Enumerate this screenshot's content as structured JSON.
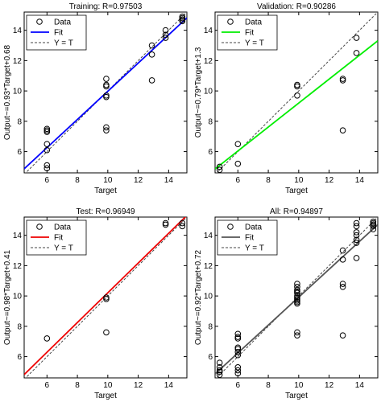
{
  "chart_data": [
    {
      "type": "scatter",
      "title": "Training: R=0.97503",
      "xlabel": "Target",
      "ylabel": "Output~=0.93*Target+0.68",
      "xlim": [
        4.5,
        15.2
      ],
      "ylim": [
        4.6,
        15.2
      ],
      "xticks": [
        6,
        8,
        10,
        12,
        14
      ],
      "yticks": [
        6,
        8,
        10,
        12,
        14
      ],
      "grid": false,
      "legend_position": "top-left",
      "legend": [
        "Data",
        "Fit",
        "Y = T"
      ],
      "fit_color": "#0000ff",
      "fit": {
        "slope": 0.93,
        "intercept": 0.68
      },
      "series": [
        {
          "name": "Data",
          "points": [
            [
              6,
              4.9
            ],
            [
              6,
              5.1
            ],
            [
              6,
              6.1
            ],
            [
              6,
              6.5
            ],
            [
              6,
              7.3
            ],
            [
              6,
              7.4
            ],
            [
              6,
              7.5
            ],
            [
              9.9,
              7.4
            ],
            [
              9.9,
              7.6
            ],
            [
              9.9,
              9.6
            ],
            [
              9.9,
              9.7
            ],
            [
              9.9,
              10.3
            ],
            [
              9.9,
              10.4
            ],
            [
              9.9,
              10.8
            ],
            [
              12.9,
              10.7
            ],
            [
              12.9,
              12.4
            ],
            [
              12.9,
              13.0
            ],
            [
              13.8,
              13.5
            ],
            [
              13.8,
              13.7
            ],
            [
              13.8,
              14.0
            ],
            [
              14.9,
              14.6
            ],
            [
              14.9,
              14.7
            ],
            [
              14.9,
              14.8
            ],
            [
              14.9,
              14.9
            ]
          ]
        }
      ]
    },
    {
      "type": "scatter",
      "title": "Validation: R=0.90286",
      "xlabel": "Target",
      "ylabel": "Output~=0.79*Target+1.3",
      "xlim": [
        4.5,
        15.2
      ],
      "ylim": [
        4.6,
        15.2
      ],
      "xticks": [
        6,
        8,
        10,
        12,
        14
      ],
      "yticks": [
        6,
        8,
        10,
        12,
        14
      ],
      "grid": false,
      "legend_position": "top-left",
      "legend": [
        "Data",
        "Fit",
        "Y = T"
      ],
      "fit_color": "#00ee00",
      "fit": {
        "slope": 0.79,
        "intercept": 1.3
      },
      "series": [
        {
          "name": "Data",
          "points": [
            [
              4.8,
              4.8
            ],
            [
              4.8,
              5.0
            ],
            [
              6,
              5.2
            ],
            [
              6,
              6.5
            ],
            [
              9.9,
              9.7
            ],
            [
              9.9,
              10.3
            ],
            [
              9.9,
              10.4
            ],
            [
              12.9,
              7.4
            ],
            [
              12.9,
              10.7
            ],
            [
              12.9,
              10.8
            ],
            [
              13.8,
              12.5
            ],
            [
              13.8,
              13.5
            ]
          ]
        }
      ]
    },
    {
      "type": "scatter",
      "title": "Test: R=0.96949",
      "xlabel": "Target",
      "ylabel": "Output~=0.98*Target+0.41",
      "xlim": [
        4.5,
        15.2
      ],
      "ylim": [
        4.6,
        15.2
      ],
      "xticks": [
        6,
        8,
        10,
        12,
        14
      ],
      "yticks": [
        6,
        8,
        10,
        12,
        14
      ],
      "grid": false,
      "legend_position": "top-left",
      "legend": [
        "Data",
        "Fit",
        "Y = T"
      ],
      "fit_color": "#ee0000",
      "fit": {
        "slope": 0.98,
        "intercept": 0.41
      },
      "series": [
        {
          "name": "Data",
          "points": [
            [
              6,
              7.2
            ],
            [
              9.9,
              7.6
            ],
            [
              9.9,
              9.8
            ],
            [
              9.9,
              9.9
            ],
            [
              13.8,
              14.7
            ],
            [
              13.8,
              14.8
            ],
            [
              14.9,
              14.6
            ],
            [
              14.9,
              14.8
            ]
          ]
        }
      ]
    },
    {
      "type": "scatter",
      "title": "All: R=0.94897",
      "xlabel": "Target",
      "ylabel": "Output~=0.92*Target+0.72",
      "xlim": [
        4.5,
        15.2
      ],
      "ylim": [
        4.6,
        15.2
      ],
      "xticks": [
        6,
        8,
        10,
        12,
        14
      ],
      "yticks": [
        6,
        8,
        10,
        12,
        14
      ],
      "grid": false,
      "legend_position": "top-left",
      "legend": [
        "Data",
        "Fit",
        "Y = T"
      ],
      "fit_color": "#555555",
      "fit": {
        "slope": 0.92,
        "intercept": 0.72
      },
      "series": [
        {
          "name": "Data",
          "points": [
            [
              4.8,
              4.8
            ],
            [
              4.8,
              5.0
            ],
            [
              4.8,
              5.1
            ],
            [
              4.8,
              5.3
            ],
            [
              4.8,
              5.6
            ],
            [
              6,
              4.9
            ],
            [
              6,
              5.1
            ],
            [
              6,
              5.3
            ],
            [
              6,
              6.1
            ],
            [
              6,
              6.3
            ],
            [
              6,
              6.5
            ],
            [
              6,
              6.6
            ],
            [
              6,
              7.2
            ],
            [
              6,
              7.3
            ],
            [
              6,
              7.5
            ],
            [
              9.9,
              7.4
            ],
            [
              9.9,
              7.6
            ],
            [
              9.9,
              9.5
            ],
            [
              9.9,
              9.6
            ],
            [
              9.9,
              9.7
            ],
            [
              9.9,
              9.8
            ],
            [
              9.9,
              9.9
            ],
            [
              9.9,
              10.0
            ],
            [
              9.9,
              10.2
            ],
            [
              9.9,
              10.3
            ],
            [
              9.9,
              10.4
            ],
            [
              9.9,
              10.6
            ],
            [
              9.9,
              10.8
            ],
            [
              12.9,
              7.4
            ],
            [
              12.9,
              10.6
            ],
            [
              12.9,
              10.8
            ],
            [
              12.9,
              12.4
            ],
            [
              12.9,
              13.0
            ],
            [
              13.8,
              12.5
            ],
            [
              13.8,
              13.5
            ],
            [
              13.8,
              13.7
            ],
            [
              13.8,
              14.0
            ],
            [
              13.8,
              14.2
            ],
            [
              13.8,
              14.6
            ],
            [
              13.8,
              14.8
            ],
            [
              14.9,
              14.4
            ],
            [
              14.9,
              14.6
            ],
            [
              14.9,
              14.7
            ],
            [
              14.9,
              14.8
            ],
            [
              14.9,
              14.9
            ]
          ]
        }
      ]
    }
  ]
}
